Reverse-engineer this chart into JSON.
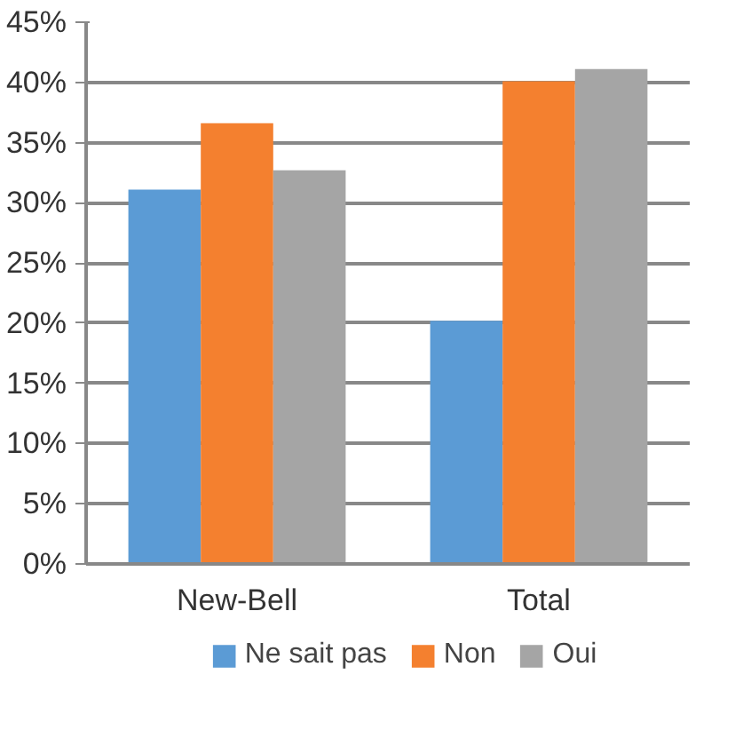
{
  "chart_data": {
    "type": "bar",
    "categories": [
      "New-Bell",
      "Total"
    ],
    "series": [
      {
        "name": "Ne sait pas",
        "color": "#5b9bd5",
        "values": [
          31.1,
          20.2
        ]
      },
      {
        "name": "Non",
        "color": "#f4802f",
        "values": [
          36.6,
          40.1
        ]
      },
      {
        "name": "Oui",
        "color": "#a5a5a5",
        "values": [
          32.7,
          41.1
        ]
      }
    ],
    "ylim": [
      0,
      45
    ],
    "yticks": [
      {
        "value": 0,
        "label": "0%"
      },
      {
        "value": 5,
        "label": "5%"
      },
      {
        "value": 10,
        "label": "10%"
      },
      {
        "value": 15,
        "label": "15%"
      },
      {
        "value": 20,
        "label": "20%"
      },
      {
        "value": 25,
        "label": "25%"
      },
      {
        "value": 30,
        "label": "30%"
      },
      {
        "value": 35,
        "label": "35%"
      },
      {
        "value": 40,
        "label": "40%"
      },
      {
        "value": 45,
        "label": "45%"
      }
    ],
    "grid": "y",
    "legend": "bottom"
  }
}
